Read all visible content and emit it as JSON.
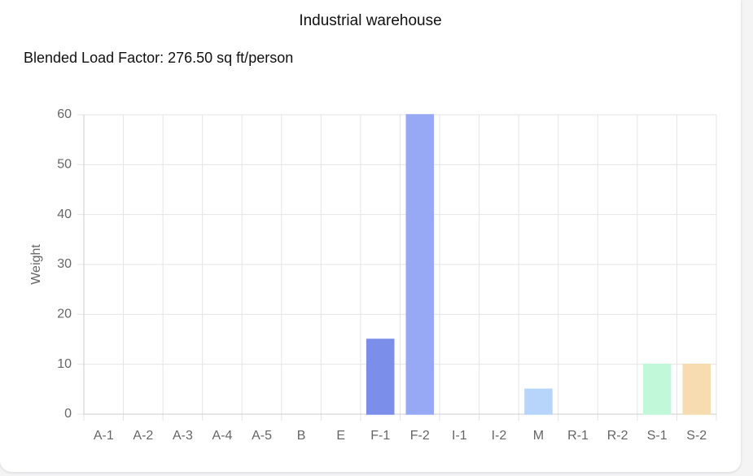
{
  "chart_data": {
    "type": "bar",
    "title": "Industrial warehouse",
    "subtitle": "Blended Load Factor: 276.50 sq ft/person",
    "y_label": "Weight",
    "categories": [
      "A-1",
      "A-2",
      "A-3",
      "A-4",
      "A-5",
      "B",
      "E",
      "F-1",
      "F-2",
      "I-1",
      "I-2",
      "M",
      "R-1",
      "R-2",
      "S-1",
      "S-2"
    ],
    "values": [
      0,
      0,
      0,
      0,
      0,
      0,
      0,
      15,
      60,
      0,
      0,
      5,
      0,
      0,
      10,
      10
    ],
    "colors": [
      "#c9cbcf",
      "#c9cbcf",
      "#c9cbcf",
      "#c9cbcf",
      "#c9cbcf",
      "#c9cbcf",
      "#c9cbcf",
      "#7b8ee9",
      "#97a9f5",
      "#c9cbcf",
      "#c9cbcf",
      "#b7d5fa",
      "#c9cbcf",
      "#c9cbcf",
      "#c1f8da",
      "#f7dcb1"
    ],
    "ylim": [
      0,
      60
    ],
    "yticks": [
      0,
      10,
      20,
      30,
      40,
      50,
      60
    ],
    "grid": true
  }
}
